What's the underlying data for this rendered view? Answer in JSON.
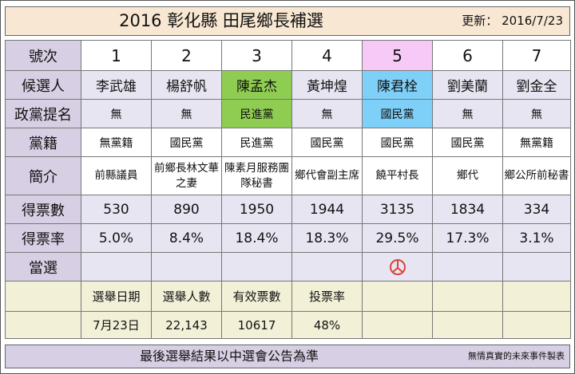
{
  "header": {
    "title": "2016 彰化縣  田尾鄉長補選",
    "updated_label": "更新：",
    "updated_date": "2016/7/23"
  },
  "labels": {
    "number": "號次",
    "candidate": "候選人",
    "nomination": "政黨提名",
    "membership": "黨籍",
    "bio": "簡介",
    "votes": "得票數",
    "vote_rate": "得票率",
    "elected": "當選"
  },
  "candidates": [
    {
      "number": "1",
      "name": "李武雄",
      "nomination": "無",
      "membership": "無黨籍",
      "bio": "前縣議員",
      "votes": "530",
      "rate": "5.0%"
    },
    {
      "number": "2",
      "name": "楊舒帆",
      "nomination": "無",
      "membership": "國民黨",
      "bio": "前鄉長林文華之妻",
      "votes": "890",
      "rate": "8.4%"
    },
    {
      "number": "3",
      "name": "陳孟杰",
      "nomination": "民進黨",
      "membership": "民進黨",
      "bio": "陳素月服務團隊秘書",
      "votes": "1950",
      "rate": "18.4%"
    },
    {
      "number": "4",
      "name": "黃坤煌",
      "nomination": "無",
      "membership": "國民黨",
      "bio": "鄉代會副主席",
      "votes": "1944",
      "rate": "18.3%"
    },
    {
      "number": "5",
      "name": "陳君栓",
      "nomination": "國民黨",
      "membership": "國民黨",
      "bio": "饒平村長",
      "votes": "3135",
      "rate": "29.5%"
    },
    {
      "number": "6",
      "name": "劉美蘭",
      "nomination": "無",
      "membership": "國民黨",
      "bio": "鄉代",
      "votes": "1834",
      "rate": "17.3%"
    },
    {
      "number": "7",
      "name": "劉金全",
      "nomination": "無",
      "membership": "無黨籍",
      "bio": "鄉公所前秘書",
      "votes": "334",
      "rate": "3.1%"
    }
  ],
  "winner_index": 4,
  "winner_icon": "elected-stamp-icon",
  "stats": {
    "date_label": "選舉日期",
    "date": "7月23日",
    "electorate_label": "選舉人數",
    "electorate": "22,143",
    "valid_label": "有效票數",
    "valid": "10617",
    "turnout_label": "投票率",
    "turnout": "48%"
  },
  "footer": {
    "note": "最後選舉結果以中選會公告為準",
    "credit": "無情真實的未來事件製表"
  },
  "colors": {
    "title_bg": "#f8e8d3",
    "label_bg": "#d7cfe3",
    "row_bg": "#e8e5f2",
    "stats_bg": "#f2f1d8",
    "dpp_green": "#8fcc52",
    "kmt_blue": "#7fd0f8",
    "winner_pink": "#f6c9f6",
    "stamp_red": "#d9443c"
  }
}
